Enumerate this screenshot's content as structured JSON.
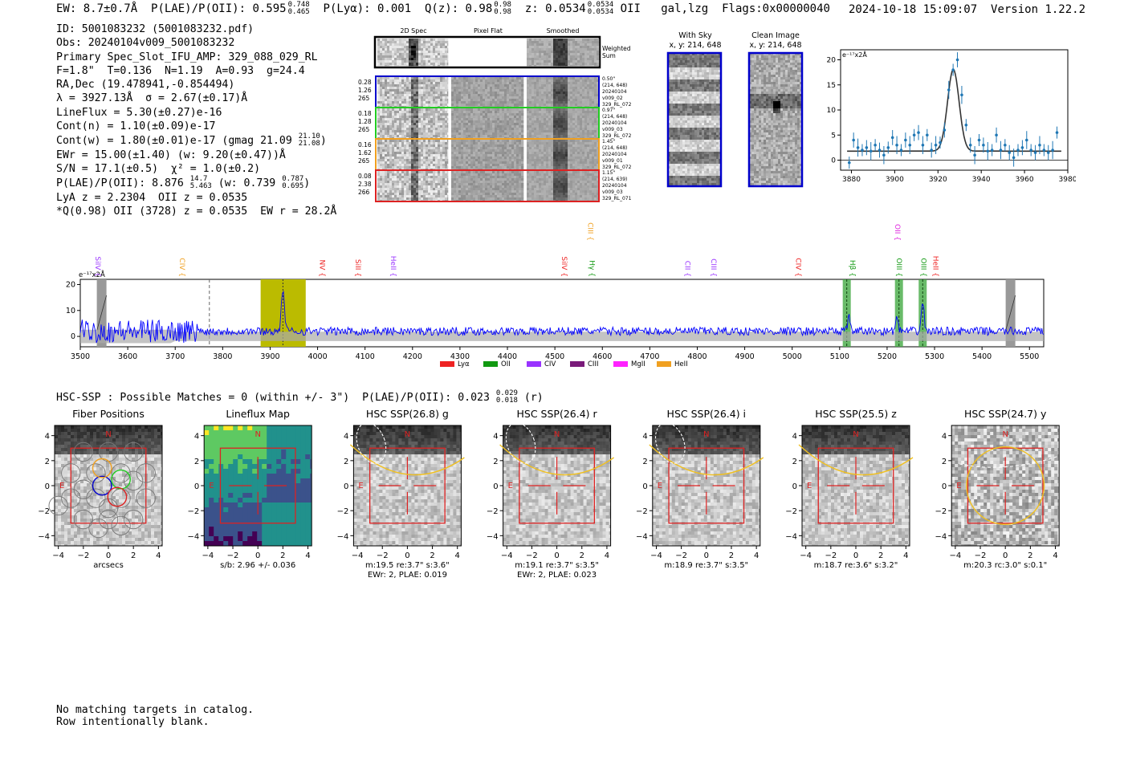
{
  "header": {
    "ew": "EW: 8.7±0.7Å",
    "plae_label": "P(LAE)/P(OII): 0.595",
    "plae_sup": "0.748",
    "plae_sub": "0.465",
    "plya": "P(Lyα): 0.001",
    "q_label": "Q(z): 0.98",
    "q_sup": "0.98",
    "q_sub": "0.98",
    "z_label": "z: 0.0534",
    "z_sup": "0.0534",
    "z_sub": "0.0534",
    "z_line": "OII",
    "classes": "gal,lzg",
    "flags": "Flags:0x00000040",
    "datetime": "2024-10-18 15:09:07",
    "version": "Version 1.22.2"
  },
  "info": {
    "id": "ID: 5001083232 (5001083232.pdf)",
    "obs": "Obs: 20240104v009_5001083232",
    "primary": "Primary Spec_Slot_IFU_AMP: 329_088_029_RL",
    "fwhm": "F=1.8\"  T=0.136  N=1.19  A=0.93  g=24.4",
    "radec": "RA,Dec (19.478941,-0.854494)",
    "lambda": "λ = 3927.13Å  σ = 2.67(±0.17)Å",
    "lineflux": "LineFlux = 5.30(±0.27)e-16",
    "contn": "Cont(n) = 1.10(±0.09)e-17",
    "contw_pre": "Cont(w) = 1.80(±0.01)e-17 (gmag 21.09",
    "contw_sup": "21.10",
    "contw_sub": "21.08",
    "contw_post": ")",
    "ewr": "EWr = 15.00(±1.40) (w: 9.20(±0.47))Å",
    "sn": "S/N = 17.1(±0.5)  χ² = 1.0(±0.2)",
    "plae2_pre": "P(LAE)/P(OII): 8.876",
    "plae2_sup": "14.7",
    "plae2_sub": "5.463",
    "plae2_mid": " (w: 0.739",
    "plae2_sup2": "0.787",
    "plae2_sub2": "0.695",
    "plae2_post": ")",
    "lya": "LyA z = 2.2304  OII z = 0.0535",
    "q": "*Q(0.98) OII (3728) z = 0.0535  EW r = 28.2Å"
  },
  "cutouts": {
    "headers": [
      "2D Spec",
      "Pixel Flat",
      "Smoothed"
    ],
    "weighted_sum": "Weighted Sum",
    "rows": [
      {
        "left": [
          "0.28",
          "1.26",
          "265"
        ],
        "right": [
          "0.50\"",
          "(214, 648)",
          "20240104",
          "v009_02",
          "329_RL_072"
        ],
        "color": "#0000cc"
      },
      {
        "left": [
          "0.18",
          "1.28",
          "265"
        ],
        "right": [
          "0.97\"",
          "(214, 648)",
          "20240104",
          "v009_03",
          "329_RL_072"
        ],
        "color": "#22cc22"
      },
      {
        "left": [
          "0.16",
          "1.62",
          "265"
        ],
        "right": [
          "1.45\"",
          "(214, 648)",
          "20240104",
          "v009_01",
          "329_RL_072"
        ],
        "color": "#f0a020"
      },
      {
        "left": [
          "0.08",
          "2.38",
          "266"
        ],
        "right": [
          "1.15\"",
          "(214, 639)",
          "20240104",
          "v009_03",
          "329_RL_071"
        ],
        "color": "#dd2222"
      }
    ]
  },
  "sky": {
    "with_sky_title": "With Sky",
    "with_sky_xy": "x, y: 214, 648",
    "clean_title": "Clean Image",
    "clean_xy": "x, y: 214, 648"
  },
  "zoom": {
    "unit_label": "e⁻¹⁷x2Å",
    "x_ticks": [
      "3880",
      "3900",
      "3920",
      "3940",
      "3960",
      "3980"
    ],
    "y_ticks": [
      "0",
      "5",
      "10",
      "15",
      "20"
    ]
  },
  "spectrum": {
    "unit_label": "e⁻¹⁷x2Å",
    "x_ticks": [
      "3500",
      "3600",
      "3700",
      "3800",
      "3900",
      "4000",
      "4100",
      "4200",
      "4300",
      "4400",
      "4500",
      "4600",
      "4700",
      "4800",
      "4900",
      "5000",
      "5100",
      "5200",
      "5300",
      "5400",
      "5500"
    ],
    "y_ticks": [
      "0",
      "10",
      "20"
    ],
    "line_labels": [
      {
        "text": "SiIV",
        "color": "#9933ff",
        "w": 3532
      },
      {
        "text": "CIV",
        "color": "#f0a020",
        "w": 3710
      },
      {
        "text": "NV",
        "color": "#ee2222",
        "w": 4005
      },
      {
        "text": "SiII",
        "color": "#ee2222",
        "w": 4080
      },
      {
        "text": "HeII",
        "color": "#9933ff",
        "w": 4155
      },
      {
        "text": "SiIV",
        "color": "#ee2222",
        "w": 4515
      },
      {
        "text": "CIII",
        "color": "#f0a020",
        "w": 4570
      },
      {
        "text": "Hγ",
        "color": "#119911",
        "w": 4570
      },
      {
        "text": "CII",
        "color": "#9933ff",
        "w": 4775
      },
      {
        "text": "CIII",
        "color": "#9933ff",
        "w": 4830
      },
      {
        "text": "CIV",
        "color": "#ee2222",
        "w": 5008
      },
      {
        "text": "Hβ",
        "color": "#119911",
        "w": 5122
      },
      {
        "text": "OII",
        "color": "#dd22dd",
        "w": 5217
      },
      {
        "text": "OIII",
        "color": "#119911",
        "w": 5217
      },
      {
        "text": "OIII",
        "color": "#119911",
        "w": 5272
      },
      {
        "text": "HeII",
        "color": "#ee2222",
        "w": 5297
      }
    ],
    "legend": [
      {
        "label": "Lyα",
        "color": "#ee2222"
      },
      {
        "label": "OII",
        "color": "#119911"
      },
      {
        "label": "CIV",
        "color": "#9933ff"
      },
      {
        "label": "CIII",
        "color": "#7a1a7a"
      },
      {
        "label": "MgII",
        "color": "#ff22ff"
      },
      {
        "label": "HeII",
        "color": "#f0a020"
      }
    ]
  },
  "hsc": {
    "title": "HSC-SSP : Possible Matches = 0 (within +/- 3\")  P(LAE)/P(OII): 0.023",
    "title_sup": "0.029",
    "title_sub": "0.018",
    "title_band": "(r)",
    "axis_ticks": [
      "−4",
      "−2",
      "0",
      "2",
      "4"
    ],
    "panels": [
      {
        "title": "Fiber Positions",
        "cap1": "arcsecs",
        "cap2": "",
        "kind": "fiber"
      },
      {
        "title": "Lineflux Map",
        "cap1": "s/b: 2.96 +/- 0.036",
        "cap2": "",
        "kind": "flux"
      },
      {
        "title": "HSC SSP(26.8) g",
        "cap1": "m:19.5  re:3.7\"  s:3.6\"",
        "cap2": "EWr: 2, PLAE: 0.019",
        "kind": "g"
      },
      {
        "title": "HSC SSP(26.4) r",
        "cap1": "m:19.1  re:3.7\"  s:3.5\"",
        "cap2": "EWr: 2, PLAE: 0.023",
        "kind": "r"
      },
      {
        "title": "HSC SSP(26.4) i",
        "cap1": "m:18.9  re:3.7\"  s:3.5\"",
        "cap2": "",
        "kind": "i"
      },
      {
        "title": "HSC SSP(25.5) z",
        "cap1": "m:18.7  re:3.6\"  s:3.2\"",
        "cap2": "",
        "kind": "z"
      },
      {
        "title": "HSC SSP(24.7) y",
        "cap1": "m:20.3  rc:3.0\"  s:0.1\"",
        "cap2": "",
        "kind": "y"
      }
    ],
    "north": "N",
    "east": "E"
  },
  "chart_data": [
    {
      "type": "line",
      "name": "zoom",
      "xlim": [
        3875,
        3980
      ],
      "ylim": [
        -2,
        22
      ],
      "x": [
        3879,
        3881,
        3883,
        3885,
        3887,
        3889,
        3891,
        3893,
        3895,
        3897,
        3899,
        3901,
        3903,
        3905,
        3907,
        3909,
        3911,
        3913,
        3915,
        3917,
        3919,
        3921,
        3923,
        3925,
        3927,
        3929,
        3931,
        3933,
        3935,
        3937,
        3939,
        3941,
        3943,
        3945,
        3947,
        3949,
        3951,
        3953,
        3955,
        3957,
        3959,
        3961,
        3963,
        3965,
        3967,
        3969,
        3971,
        3973,
        3975
      ],
      "y": [
        -0.5,
        4,
        2.5,
        2,
        2.5,
        1.8,
        3,
        2,
        1,
        2.5,
        4.5,
        3,
        2,
        4,
        3,
        5,
        5.5,
        3,
        5,
        2,
        3,
        3.5,
        6,
        14,
        18,
        20,
        13,
        7,
        3,
        1,
        4,
        3,
        1.8,
        2,
        5,
        2,
        3,
        1.5,
        0.5,
        2,
        2.5,
        4,
        2,
        1.5,
        3,
        2,
        1.5,
        2,
        5.5
      ],
      "fit_center": 3927.1,
      "fit_sigma": 2.67,
      "fit_amp": 16.3,
      "fit_baseline": 1.8
    },
    {
      "type": "line",
      "name": "full-spectrum",
      "xlim": [
        3500,
        5530
      ],
      "ylim": [
        -4,
        22
      ],
      "continuum": 2.0,
      "emission_lines": [
        {
          "x": 3927,
          "amp": 17
        },
        {
          "x": 5120,
          "amp": 5
        },
        {
          "x": 5220,
          "amp": 5
        },
        {
          "x": 5275,
          "amp": 11
        }
      ],
      "highlight_yellow": [
        3880,
        3975
      ],
      "highlight_green": [
        5115,
        5225,
        5275
      ],
      "masked_gray": [
        3545,
        5460
      ],
      "dashed_marker": 3772
    }
  ],
  "footer": {
    "line1": "No matching targets in catalog.",
    "line2": "Row intentionally blank."
  },
  "colors": {
    "spectrum": "#0000ff",
    "fit": "#333333",
    "points": "#1f77b4",
    "yellow_band": "#bbbb00",
    "green_band": "#44aa44",
    "red_box": "#dd2222",
    "gold_ellipse": "#f0c020"
  }
}
